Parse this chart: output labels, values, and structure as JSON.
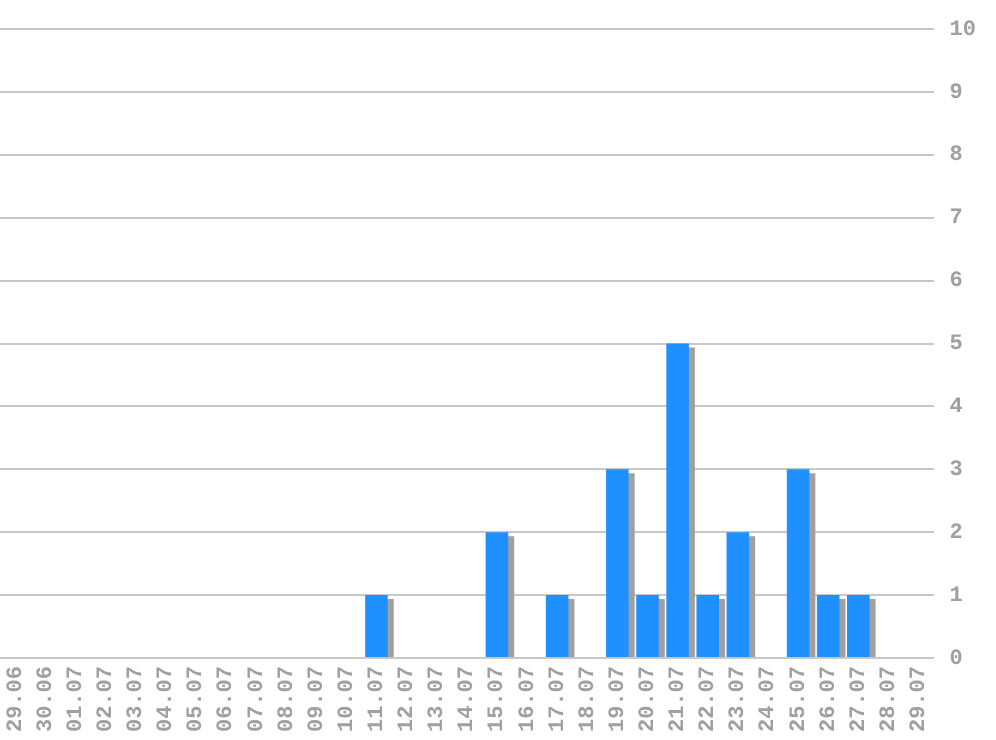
{
  "chart_data": {
    "type": "bar",
    "categories": [
      "29.06",
      "30.06",
      "01.07",
      "02.07",
      "03.07",
      "04.07",
      "05.07",
      "06.07",
      "07.07",
      "08.07",
      "09.07",
      "10.07",
      "11.07",
      "12.07",
      "13.07",
      "14.07",
      "15.07",
      "16.07",
      "17.07",
      "18.07",
      "19.07",
      "20.07",
      "21.07",
      "22.07",
      "23.07",
      "24.07",
      "25.07",
      "26.07",
      "27.07",
      "28.07",
      "29.07"
    ],
    "values": [
      0,
      0,
      0,
      0,
      0,
      0,
      0,
      0,
      0,
      0,
      0,
      0,
      1,
      0,
      0,
      0,
      2,
      0,
      1,
      0,
      3,
      1,
      5,
      1,
      2,
      0,
      3,
      1,
      1,
      0,
      0
    ],
    "color": "#1e90ff",
    "ylim": [
      0,
      10
    ],
    "yticks": [
      0,
      1,
      2,
      3,
      4,
      5,
      6,
      7,
      8,
      9,
      10
    ],
    "grid": "y",
    "legend": false
  }
}
